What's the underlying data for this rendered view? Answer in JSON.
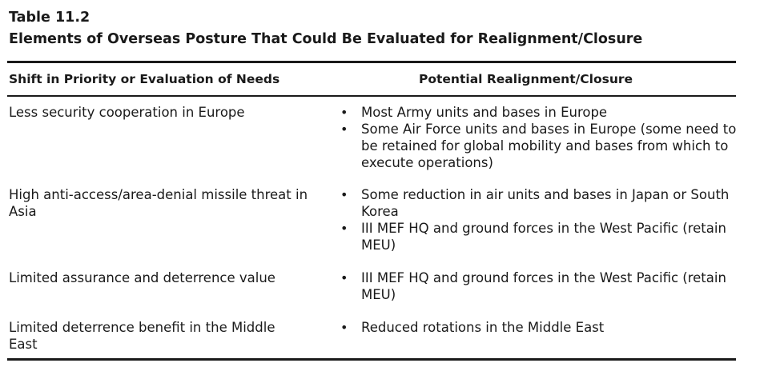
{
  "table": {
    "number": "Table 11.2",
    "title": "Elements of Overseas Posture That Could Be Evaluated for Realignment/Closure",
    "header_left": "Shift in Priority or Evaluation of Needs",
    "header_right": "Potential Realignment/Closure",
    "bullet_glyph": "•",
    "rows": [
      {
        "need": "Less security cooperation in Europe",
        "closures": [
          "Most Army units and bases in Europe",
          "Some Air Force units and bases in Europe (some need to be retained for global mobility and bases from which to execute operations)"
        ]
      },
      {
        "need": "High anti-access/area-denial missile threat in Asia",
        "closures": [
          "Some reduction in air units and bases in Japan or South Korea",
          "III MEF HQ and ground forces in the West Pacific (retain MEU)"
        ]
      },
      {
        "need": "Limited assurance and deterrence value",
        "closures": [
          "III MEF HQ and ground forces in the West Pacific (retain MEU)"
        ]
      },
      {
        "need": "Limited deterrence benefit in the Middle East",
        "closures": [
          "Reduced rotations in the Middle East"
        ]
      }
    ]
  }
}
